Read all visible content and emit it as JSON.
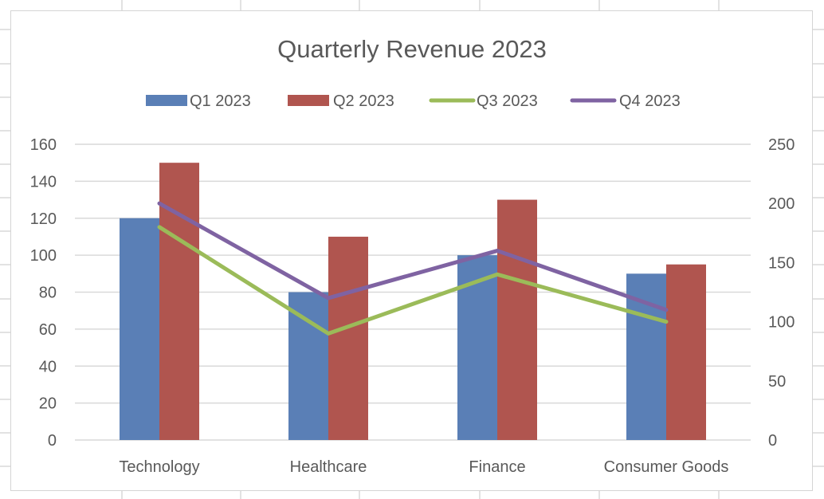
{
  "chart_data": {
    "type": "bar",
    "title": "Quarterly Revenue 2023",
    "categories": [
      "Technology",
      "Healthcare",
      "Finance",
      "Consumer Goods"
    ],
    "series": [
      {
        "name": "Q1 2023",
        "kind": "bar",
        "axis": "left",
        "color": "#5A7FB6",
        "values": [
          120,
          80,
          100,
          90
        ]
      },
      {
        "name": "Q2 2023",
        "kind": "bar",
        "axis": "left",
        "color": "#B0554F",
        "values": [
          150,
          110,
          130,
          95
        ]
      },
      {
        "name": "Q3 2023",
        "kind": "line",
        "axis": "right",
        "color": "#9BBB59",
        "values": [
          180,
          90,
          140,
          100
        ]
      },
      {
        "name": "Q4 2023",
        "kind": "line",
        "axis": "right",
        "color": "#7F63A2",
        "values": [
          200,
          120,
          160,
          110
        ]
      }
    ],
    "left_axis": {
      "min": 0,
      "max": 160,
      "step": 20,
      "ticks": [
        "0",
        "20",
        "40",
        "60",
        "80",
        "100",
        "120",
        "140",
        "160"
      ]
    },
    "right_axis": {
      "min": 0,
      "max": 250,
      "step": 50,
      "ticks": [
        "0",
        "50",
        "100",
        "150",
        "200",
        "250"
      ]
    },
    "xlabel": "",
    "ylabel": "",
    "grid": true,
    "legend_position": "top"
  }
}
